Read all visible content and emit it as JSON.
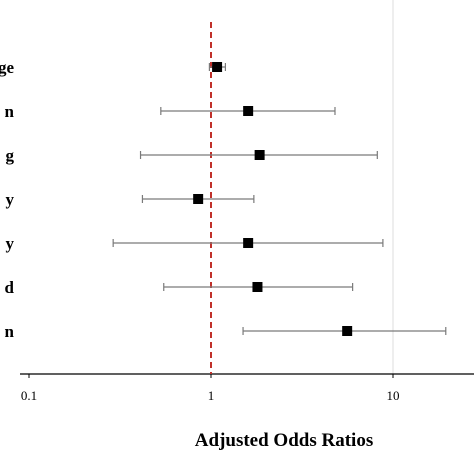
{
  "chart_data": {
    "type": "forest",
    "xscale": "log",
    "xlim": [
      0.1,
      100
    ],
    "xticks": [
      "0.1",
      "1",
      "10"
    ],
    "xtick_values": [
      0.1,
      1,
      10
    ],
    "xlabel": "Adjusted Odds Ratios",
    "reference_line": 1,
    "colors": {
      "reference": "#c0302a",
      "marker": "#000000",
      "whisker": "#7a7a7a",
      "grid": "#dcdcdc"
    },
    "rows": [
      {
        "label": "ge",
        "or": 1.08,
        "lo": 0.98,
        "hi": 1.2
      },
      {
        "label": "n",
        "or": 1.6,
        "lo": 0.53,
        "hi": 4.8
      },
      {
        "label": "g",
        "or": 1.85,
        "lo": 0.41,
        "hi": 8.2
      },
      {
        "label": "y",
        "or": 0.85,
        "lo": 0.42,
        "hi": 1.72
      },
      {
        "label": "y",
        "or": 1.6,
        "lo": 0.29,
        "hi": 8.8
      },
      {
        "label": "d",
        "or": 1.8,
        "lo": 0.55,
        "hi": 6.0
      },
      {
        "label": "n",
        "or": 5.6,
        "lo": 1.5,
        "hi": 19.5
      }
    ]
  }
}
